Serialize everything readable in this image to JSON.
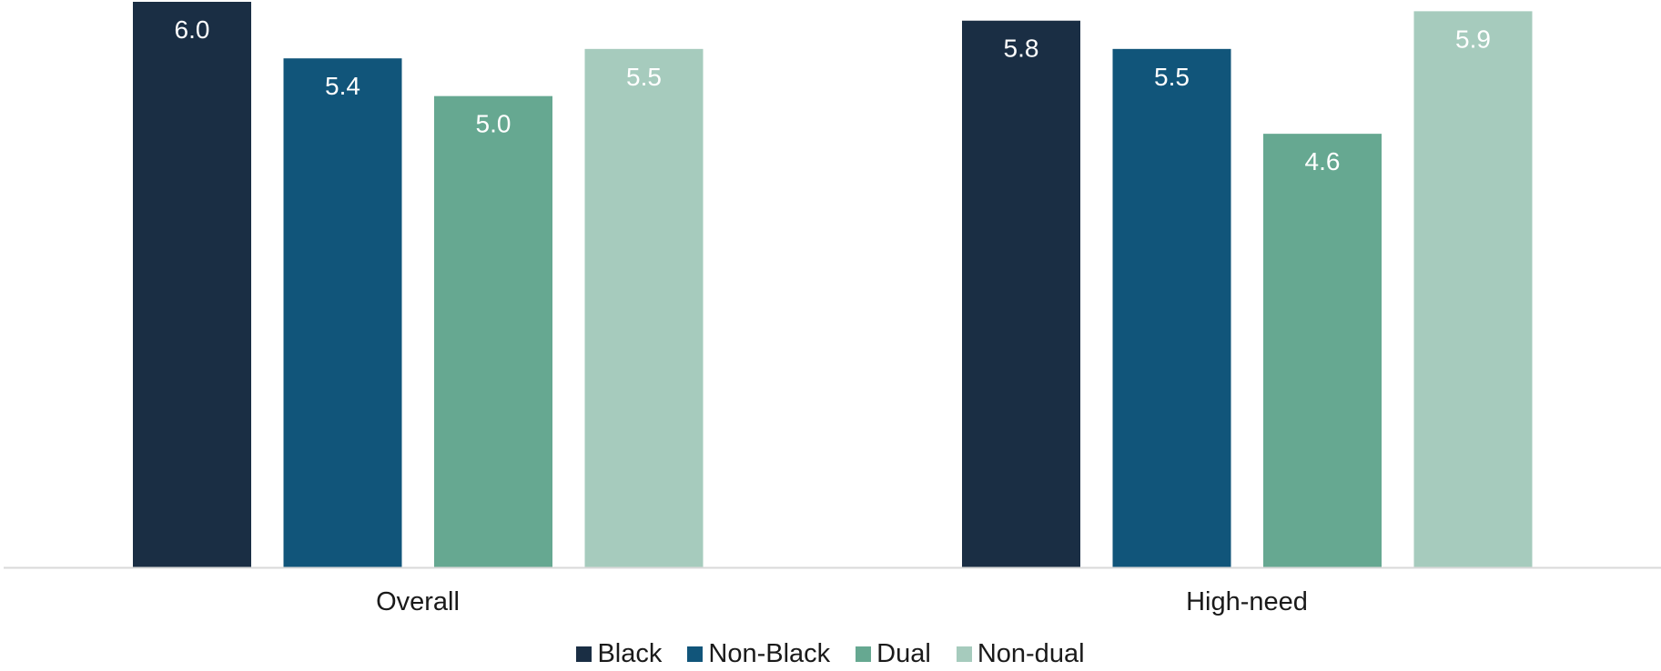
{
  "chart_data": {
    "type": "bar",
    "categories": [
      "Overall",
      "High-need"
    ],
    "series": [
      {
        "name": "Black",
        "values": [
          6.0,
          5.8
        ]
      },
      {
        "name": "Non-Black",
        "values": [
          5.4,
          5.5
        ]
      },
      {
        "name": "Dual",
        "values": [
          5.0,
          4.6
        ]
      },
      {
        "name": "Non-dual",
        "values": [
          5.5,
          5.9
        ]
      }
    ],
    "data_labels": [
      [
        "6.0",
        "5.8"
      ],
      [
        "5.4",
        "5.5"
      ],
      [
        "5.0",
        "4.6"
      ],
      [
        "5.5",
        "5.9"
      ]
    ],
    "title": "",
    "xlabel": "",
    "ylabel": "",
    "ylim": [
      0,
      6.0
    ],
    "grid": false,
    "legend_position": "bottom",
    "colors": [
      "#1a2e44",
      "#11557a",
      "#66a891",
      "#a6cbbd"
    ],
    "label_color": "#ffffff",
    "axis_line_color": "#d9d9d9"
  }
}
